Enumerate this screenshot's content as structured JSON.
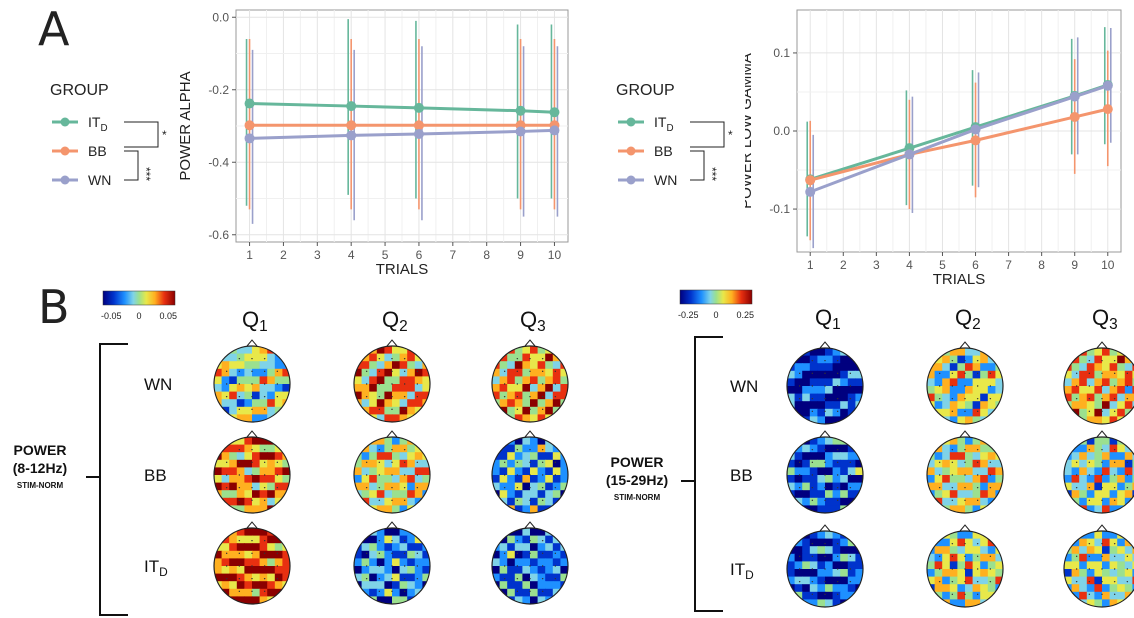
{
  "panel_labels": {
    "a": "A",
    "b": "B"
  },
  "colors": {
    "IT_D": "#66b79b",
    "BB": "#f4956d",
    "WN": "#9aa0cb"
  },
  "legend": {
    "title": "GROUP",
    "groups": [
      {
        "key": "IT_D",
        "label": "IT",
        "sub": "D"
      },
      {
        "key": "BB",
        "label": "BB",
        "sub": ""
      },
      {
        "key": "WN",
        "label": "WN",
        "sub": ""
      }
    ],
    "sig_top": "*",
    "sig_bottom": "***"
  },
  "chart_data": [
    {
      "type": "line",
      "ylabel": "POWER ALPHA",
      "xlabel": "TRIALS",
      "x_ticks": [
        1,
        2,
        3,
        4,
        5,
        6,
        7,
        8,
        9,
        10
      ],
      "y_ticks": [
        0.0,
        -0.2,
        -0.4,
        -0.6
      ],
      "y_tick_labels": [
        "0.0",
        "-0.2",
        "-0.4",
        "-0.6"
      ],
      "xlim": [
        0.6,
        10.4
      ],
      "ylim": [
        -0.62,
        0.02
      ],
      "grid": true,
      "series": [
        {
          "name": "IT_D",
          "x": [
            1,
            4,
            6,
            9,
            10
          ],
          "y": [
            -0.238,
            -0.245,
            -0.25,
            -0.258,
            -0.262
          ],
          "err_low": [
            -0.52,
            -0.49,
            -0.5,
            -0.5,
            -0.5
          ],
          "err_high": [
            -0.06,
            -0.005,
            -0.01,
            -0.02,
            -0.02
          ]
        },
        {
          "name": "BB",
          "x": [
            1,
            4,
            6,
            9,
            10
          ],
          "y": [
            -0.298,
            -0.298,
            -0.298,
            -0.298,
            -0.298
          ],
          "err_low": [
            -0.53,
            -0.53,
            -0.53,
            -0.53,
            -0.53
          ],
          "err_high": [
            -0.06,
            -0.06,
            -0.06,
            -0.06,
            -0.06
          ]
        },
        {
          "name": "WN",
          "x": [
            1,
            4,
            6,
            9,
            10
          ],
          "y": [
            -0.334,
            -0.326,
            -0.322,
            -0.315,
            -0.312
          ],
          "err_low": [
            -0.57,
            -0.56,
            -0.56,
            -0.55,
            -0.55
          ],
          "err_high": [
            -0.09,
            -0.09,
            -0.08,
            -0.08,
            -0.08
          ]
        }
      ]
    },
    {
      "type": "line",
      "ylabel": "POWER LOW GAMMA",
      "xlabel": "TRIALS",
      "x_ticks": [
        1,
        2,
        3,
        4,
        5,
        6,
        7,
        8,
        9,
        10
      ],
      "y_ticks": [
        0.1,
        0.0,
        -0.1
      ],
      "y_tick_labels": [
        "0.1",
        "0.0",
        "-0.1"
      ],
      "xlim": [
        0.6,
        10.4
      ],
      "ylim": [
        -0.155,
        0.155
      ],
      "grid": true,
      "series": [
        {
          "name": "IT_D",
          "x": [
            1,
            4,
            6,
            9,
            10
          ],
          "y": [
            -0.062,
            -0.022,
            0.005,
            0.045,
            0.059
          ],
          "err_low": [
            -0.135,
            -0.095,
            -0.07,
            -0.03,
            -0.017
          ],
          "err_high": [
            0.012,
            0.052,
            0.078,
            0.118,
            0.133
          ]
        },
        {
          "name": "BB",
          "x": [
            1,
            4,
            6,
            9,
            10
          ],
          "y": [
            -0.063,
            -0.03,
            -0.012,
            0.018,
            0.028
          ],
          "err_low": [
            -0.14,
            -0.1,
            -0.085,
            -0.055,
            -0.045
          ],
          "err_high": [
            0.013,
            0.04,
            0.062,
            0.092,
            0.103
          ]
        },
        {
          "name": "WN",
          "x": [
            1,
            4,
            6,
            9,
            10
          ],
          "y": [
            -0.078,
            -0.03,
            0.002,
            0.044,
            0.058
          ],
          "err_low": [
            -0.15,
            -0.105,
            -0.072,
            -0.03,
            -0.015
          ],
          "err_high": [
            -0.005,
            0.044,
            0.075,
            0.12,
            0.132
          ]
        }
      ]
    }
  ],
  "topo_left": {
    "colorbar": {
      "min": "-0.05",
      "mid": "0",
      "max": "0.05"
    },
    "columns": [
      {
        "label": "Q",
        "sub": "1"
      },
      {
        "label": "Q",
        "sub": "2"
      },
      {
        "label": "Q",
        "sub": "3"
      }
    ],
    "rows": [
      {
        "label": "WN",
        "sub": ""
      },
      {
        "label": "BB",
        "sub": ""
      },
      {
        "label": "IT",
        "sub": "D"
      }
    ],
    "bracket_title": "POWER",
    "bracket_range": "(8-12Hz)",
    "bracket_note": "STIM-NORM",
    "map_levels": [
      [
        0.5,
        0.7,
        0.7
      ],
      [
        0.75,
        0.6,
        0.35
      ],
      [
        0.85,
        0.3,
        0.25
      ]
    ]
  },
  "topo_right": {
    "colorbar": {
      "min": "-0.25",
      "mid": "0",
      "max": "0.25"
    },
    "columns": [
      {
        "label": "Q",
        "sub": "1"
      },
      {
        "label": "Q",
        "sub": "2"
      },
      {
        "label": "Q",
        "sub": "3"
      }
    ],
    "rows": [
      {
        "label": "WN",
        "sub": ""
      },
      {
        "label": "BB",
        "sub": ""
      },
      {
        "label": "IT",
        "sub": "D"
      }
    ],
    "bracket_title": "POWER",
    "bracket_range": "(15-29Hz)",
    "bracket_note": "STIM-NORM",
    "map_levels": [
      [
        0.12,
        0.52,
        0.68
      ],
      [
        0.22,
        0.58,
        0.5
      ],
      [
        0.2,
        0.55,
        0.5
      ]
    ]
  }
}
